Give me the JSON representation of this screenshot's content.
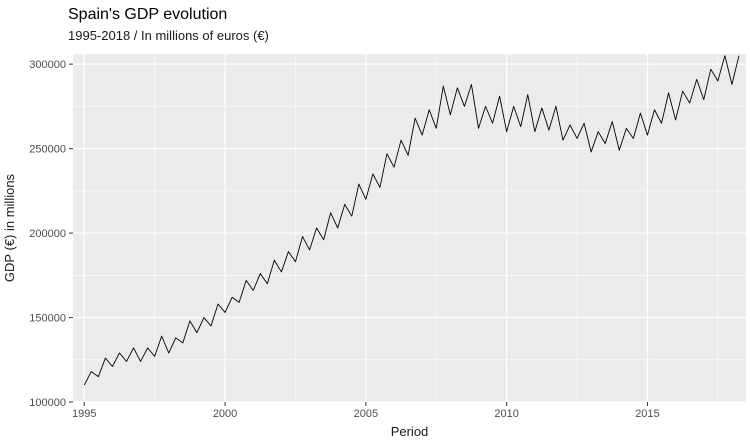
{
  "chart_data": {
    "type": "line",
    "title": "Spain's GDP evolution",
    "subtitle": "1995-2018 / In millions of euros (€)",
    "xlabel": "Period",
    "ylabel": "GDP (€) in millions",
    "xlim": [
      1994.6,
      2018.5
    ],
    "ylim": [
      100000,
      306000
    ],
    "x_ticks": [
      1995,
      2000,
      2005,
      2010,
      2015
    ],
    "y_ticks": [
      100000,
      150000,
      200000,
      250000,
      300000
    ],
    "y_tick_labels": [
      "100000",
      "150000",
      "200000",
      "250000",
      "300000"
    ],
    "grid": true,
    "legend": "none",
    "colors": {
      "panel": "#ebebeb",
      "grid": "#ffffff",
      "line": "#000000"
    },
    "series": [
      {
        "x": [
          1995.0,
          1995.25,
          1995.5,
          1995.75,
          1996.0,
          1996.25,
          1996.5,
          1996.75,
          1997.0,
          1997.25,
          1997.5,
          1997.75,
          1998.0,
          1998.25,
          1998.5,
          1998.75,
          1999.0,
          1999.25,
          1999.5,
          1999.75,
          2000.0,
          2000.25,
          2000.5,
          2000.75,
          2001.0,
          2001.25,
          2001.5,
          2001.75,
          2002.0,
          2002.25,
          2002.5,
          2002.75,
          2003.0,
          2003.25,
          2003.5,
          2003.75,
          2004.0,
          2004.25,
          2004.5,
          2004.75,
          2005.0,
          2005.25,
          2005.5,
          2005.75,
          2006.0,
          2006.25,
          2006.5,
          2006.75,
          2007.0,
          2007.25,
          2007.5,
          2007.75,
          2008.0,
          2008.25,
          2008.5,
          2008.75,
          2009.0,
          2009.25,
          2009.5,
          2009.75,
          2010.0,
          2010.25,
          2010.5,
          2010.75,
          2011.0,
          2011.25,
          2011.5,
          2011.75,
          2012.0,
          2012.25,
          2012.5,
          2012.75,
          2013.0,
          2013.25,
          2013.5,
          2013.75,
          2014.0,
          2014.25,
          2014.5,
          2014.75,
          2015.0,
          2015.25,
          2015.5,
          2015.75,
          2016.0,
          2016.25,
          2016.5,
          2016.75,
          2017.0,
          2017.25,
          2017.5,
          2017.75,
          2018.0,
          2018.25
        ],
        "values": [
          110000,
          118000,
          115000,
          126000,
          121000,
          129000,
          124000,
          132000,
          124000,
          132000,
          127000,
          139000,
          129000,
          138000,
          135000,
          148000,
          141000,
          150000,
          145000,
          158000,
          153000,
          162000,
          159000,
          172000,
          166000,
          176000,
          170000,
          184000,
          177000,
          189000,
          183000,
          198000,
          190000,
          203000,
          196000,
          212000,
          203000,
          217000,
          210000,
          229000,
          220000,
          235000,
          227000,
          247000,
          239000,
          255000,
          246000,
          268000,
          258000,
          273000,
          262000,
          287000,
          270000,
          286000,
          275000,
          288000,
          262000,
          275000,
          265000,
          281000,
          260000,
          275000,
          263000,
          282000,
          260000,
          274000,
          261000,
          275000,
          255000,
          264000,
          256000,
          265000,
          248000,
          260000,
          253000,
          266000,
          249000,
          262000,
          256000,
          271000,
          258000,
          273000,
          265000,
          283000,
          267000,
          284000,
          277000,
          291000,
          279000,
          297000,
          290000,
          305000,
          288000,
          305000
        ]
      }
    ]
  }
}
